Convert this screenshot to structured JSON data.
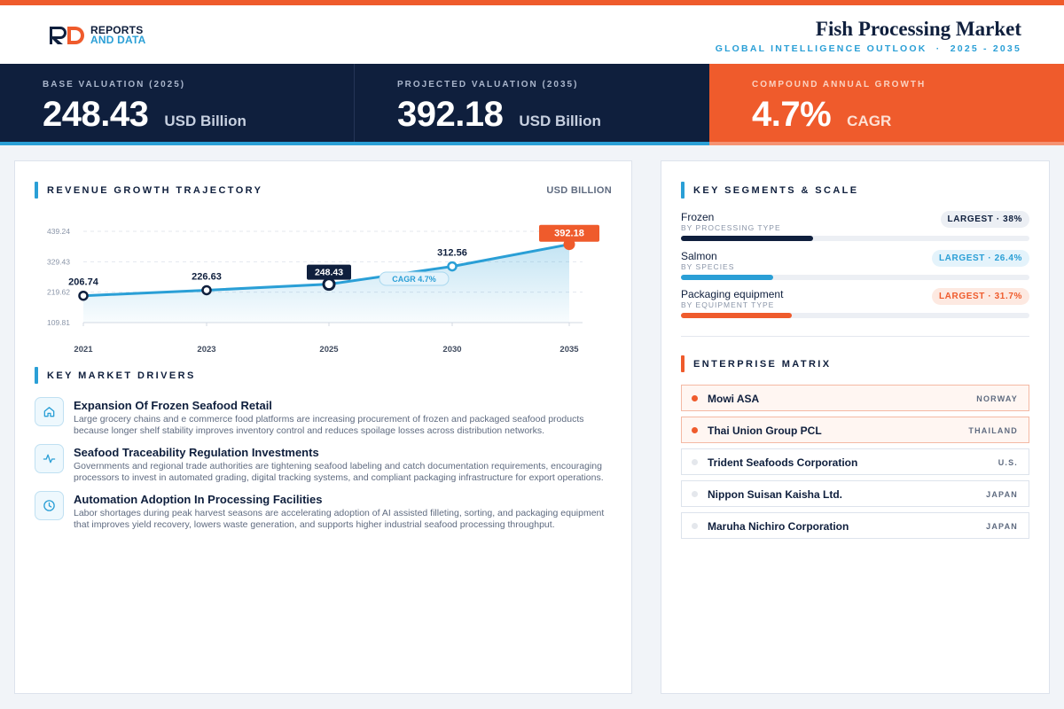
{
  "brand": {
    "line1": "REPORTS",
    "line2": "AND DATA"
  },
  "header": {
    "title": "Fish Processing Market",
    "subtitle": "GLOBAL INTELLIGENCE OUTLOOK  ·  2025 - 2035"
  },
  "kpis": [
    {
      "label": "BASE VALUATION (2025)",
      "value": "248.43",
      "unit": "USD Billion"
    },
    {
      "label": "PROJECTED VALUATION (2035)",
      "value": "392.18",
      "unit": "USD Billion"
    },
    {
      "label": "COMPOUND ANNUAL GROWTH",
      "value": "4.7%",
      "unit": "CAGR"
    }
  ],
  "revenue": {
    "title": "REVENUE GROWTH TRAJECTORY",
    "unit": "USD BILLION",
    "cagr_label": "CAGR 4.7%"
  },
  "chart_data": {
    "type": "area",
    "x": [
      "2021",
      "2023",
      "2025",
      "2030",
      "2035"
    ],
    "values": [
      206.74,
      226.63,
      248.43,
      312.56,
      392.18
    ],
    "value_labels": [
      "206.74",
      "226.63",
      "248.43",
      "312.56",
      "392.18"
    ],
    "yticks": [
      "439.24",
      "329.43",
      "219.62",
      "109.81"
    ],
    "ylim": [
      109.81,
      439.24
    ],
    "title": "REVENUE GROWTH TRAJECTORY",
    "ylabel": "USD BILLION",
    "grid": true,
    "colors": {
      "line": "#2a9fd6",
      "highlight": "#0f1f3d",
      "accent": "#ef5b2c"
    }
  },
  "drivers": {
    "title": "KEY MARKET DRIVERS",
    "items": [
      {
        "icon": "home-icon",
        "title": "Expansion Of Frozen Seafood Retail",
        "desc": "Large grocery chains and e commerce food platforms are increasing procurement of frozen and packaged seafood products because longer shelf stability improves inventory control and reduces spoilage losses across distribution networks."
      },
      {
        "icon": "activity-icon",
        "title": "Seafood Traceability Regulation Investments",
        "desc": "Governments and regional trade authorities are tightening seafood labeling and catch documentation requirements, encouraging processors to invest in automated grading, digital tracking systems, and compliant packaging infrastructure for export operations."
      },
      {
        "icon": "clock-icon",
        "title": "Automation Adoption In Processing Facilities",
        "desc": "Labor shortages during peak harvest seasons are accelerating adoption of AI assisted filleting, sorting, and packaging equipment that improves yield recovery, lowers waste generation, and supports higher industrial seafood processing throughput."
      }
    ]
  },
  "segments": {
    "title": "KEY SEGMENTS & SCALE",
    "items": [
      {
        "name": "Frozen",
        "sub": "BY PROCESSING TYPE",
        "badge": "LARGEST · 38%",
        "share": 0.38,
        "color": "#0f1f3d",
        "badge_bg": "#eceff4",
        "badge_fg": "#0f1f3d"
      },
      {
        "name": "Salmon",
        "sub": "BY SPECIES",
        "badge": "LARGEST · 26.4%",
        "share": 0.264,
        "color": "#2a9fd6",
        "badge_bg": "#e4f3fb",
        "badge_fg": "#2a9fd6"
      },
      {
        "name": "Packaging equipment",
        "sub": "BY EQUIPMENT TYPE",
        "badge": "LARGEST · 31.7%",
        "share": 0.317,
        "color": "#ef5b2c",
        "badge_bg": "#fde9e1",
        "badge_fg": "#ef5b2c"
      }
    ]
  },
  "matrix": {
    "title": "ENTERPRISE MATRIX",
    "companies": [
      {
        "name": "Mowi ASA",
        "country": "NORWAY",
        "highlight": true
      },
      {
        "name": "Thai Union Group PCL",
        "country": "THAILAND",
        "highlight": true
      },
      {
        "name": "Trident Seafoods Corporation",
        "country": "U.S.",
        "highlight": false
      },
      {
        "name": "Nippon Suisan Kaisha Ltd.",
        "country": "JAPAN",
        "highlight": false
      },
      {
        "name": "Maruha Nichiro Corporation",
        "country": "JAPAN",
        "highlight": false
      }
    ]
  }
}
